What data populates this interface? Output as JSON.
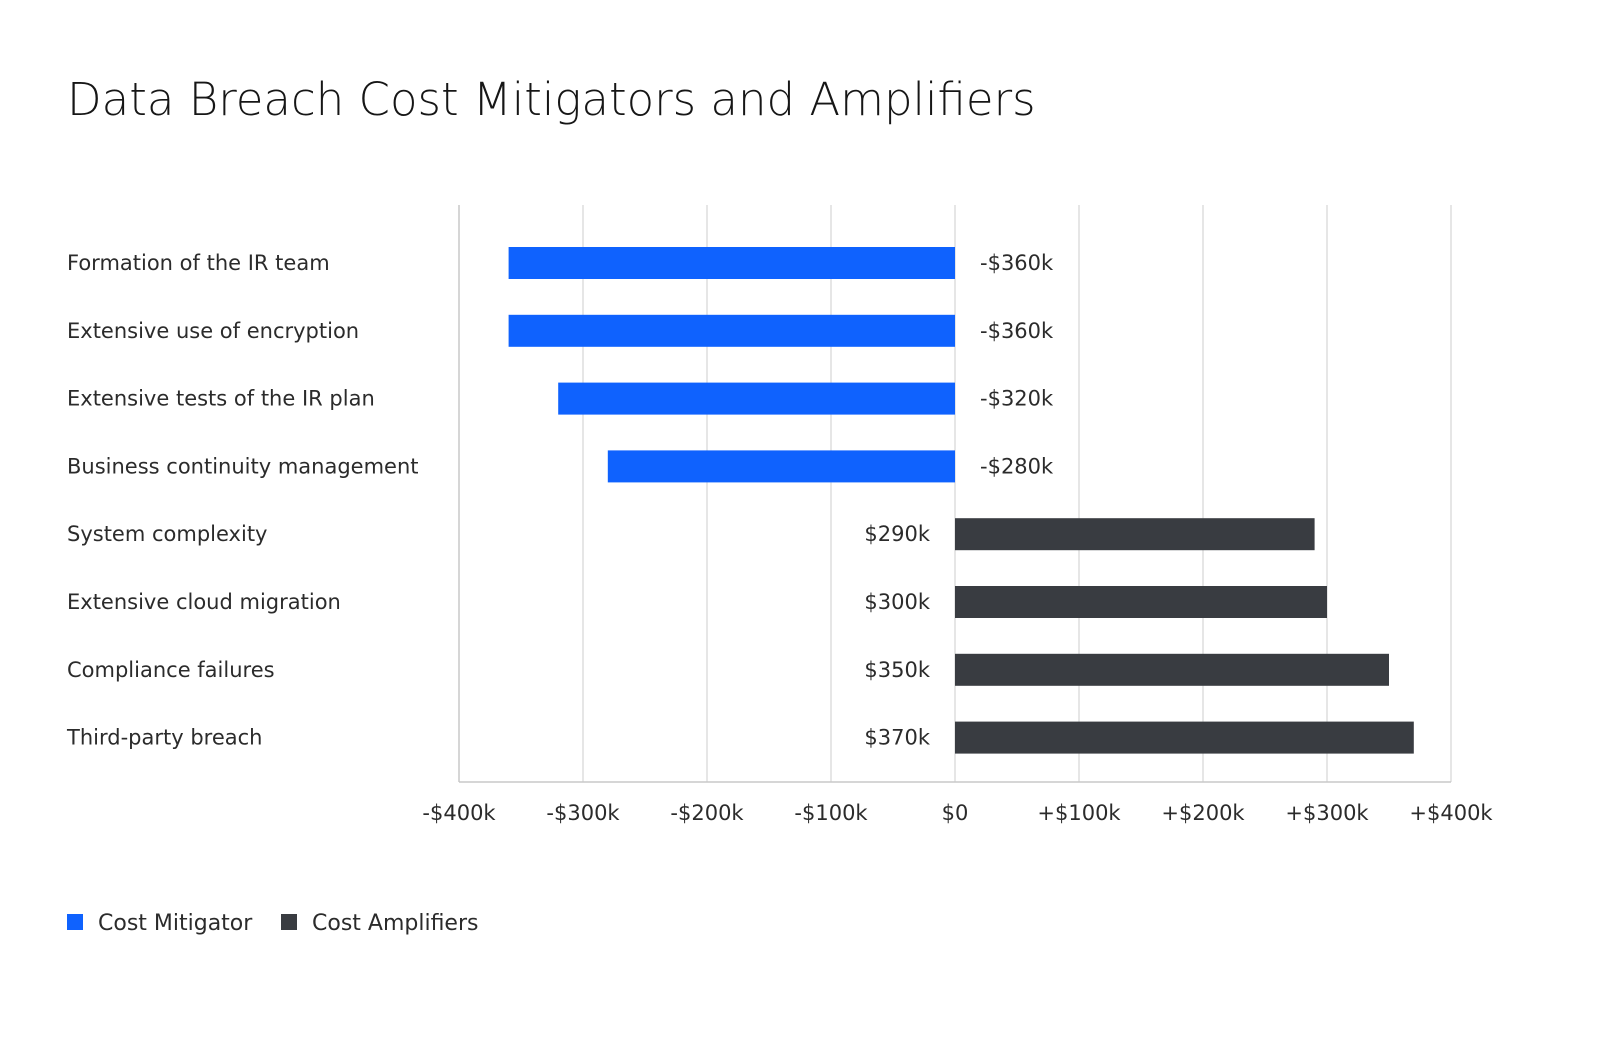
{
  "title": "Data Breach Cost Mitigators and Amplifiers",
  "colors": {
    "mitigator": "#0f62fe",
    "amplifier": "#393c41",
    "grid": "#dedede",
    "axis": "#c8c8c8",
    "text": "#2b2b2b"
  },
  "chart_data": {
    "type": "bar",
    "orientation": "horizontal",
    "title": "Data Breach Cost Mitigators and Amplifiers",
    "xlim": [
      -400,
      400
    ],
    "x_unit": "k USD",
    "x_ticks": [
      -400,
      -300,
      -200,
      -100,
      0,
      100,
      200,
      300,
      400
    ],
    "x_tick_labels": [
      "-$400k",
      "-$300k",
      "-$200k",
      "-$100k",
      "$0",
      "+$100k",
      "+$200k",
      "+$300k",
      "+$400k"
    ],
    "grid": true,
    "legend_position": "bottom-left",
    "categories": [
      "Formation of the IR team",
      "Extensive use of encryption",
      "Extensive tests of the IR plan",
      "Business continuity management",
      "System complexity",
      "Extensive cloud migration",
      "Compliance failures",
      "Third-party breach"
    ],
    "values": [
      -360,
      -360,
      -320,
      -280,
      290,
      300,
      350,
      370
    ],
    "value_labels": [
      "-$360k",
      "-$360k",
      "-$320k",
      "-$280k",
      "$290k",
      "$300k",
      "$350k",
      "$370k"
    ],
    "bar_series": [
      "Cost Mitigator",
      "Cost Mitigator",
      "Cost Mitigator",
      "Cost Mitigator",
      "Cost Amplifiers",
      "Cost Amplifiers",
      "Cost Amplifiers",
      "Cost Amplifiers"
    ],
    "legend": [
      {
        "name": "Cost Mitigator",
        "color": "#0f62fe"
      },
      {
        "name": "Cost Amplifiers",
        "color": "#393c41"
      }
    ]
  }
}
